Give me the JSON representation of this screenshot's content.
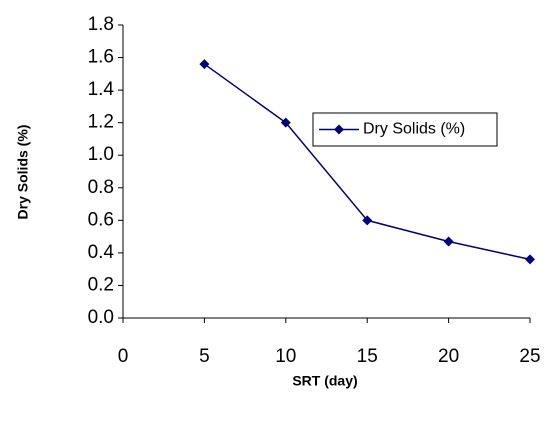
{
  "chart_data": {
    "type": "line",
    "x_label": "SRT (day)",
    "y_label": "Dry Solids (%)",
    "x": [
      5,
      10,
      15,
      20,
      25
    ],
    "series": [
      {
        "name": "Dry Solids (%)",
        "color": "#000080",
        "values": [
          1.56,
          1.2,
          0.6,
          0.47,
          0.36
        ]
      }
    ],
    "xlim": [
      0,
      25
    ],
    "xticks": [
      0,
      5,
      10,
      15,
      20,
      25
    ],
    "ylim": [
      0,
      1.8
    ],
    "yticks": [
      {
        "value": 0,
        "label": "0.0"
      },
      0.2,
      0.4,
      0.6,
      0.8,
      {
        "value": 1,
        "label": "1.0"
      },
      1.2,
      1.4,
      1.6,
      1.8
    ],
    "grid": false,
    "legend": "upper right"
  }
}
